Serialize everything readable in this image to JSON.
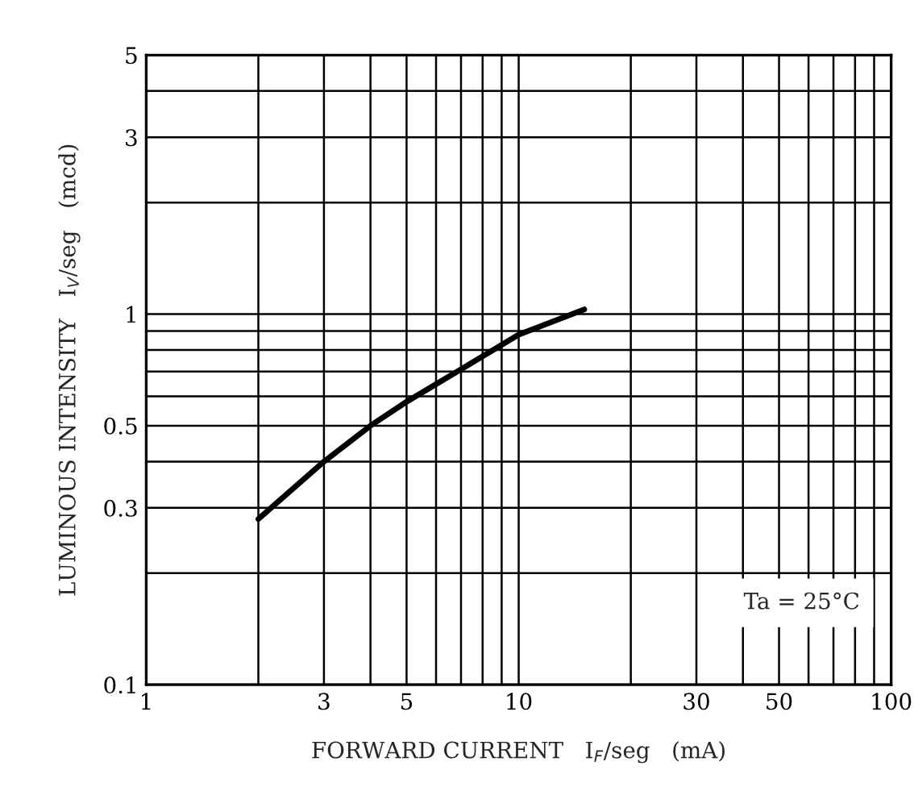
{
  "chart_data": {
    "type": "line",
    "xlabel": "FORWARD CURRENT   I$_{F}$/seg   (mA)",
    "ylabel": "LUMINOUS INTENSITY   I$_{V}$/seg   (mcd)",
    "x": [
      2,
      3,
      4,
      5,
      7,
      10,
      15
    ],
    "series": [
      {
        "color": "#000000",
        "values": [
          0.28,
          0.4,
          0.5,
          0.58,
          0.71,
          0.88,
          1.03
        ]
      }
    ],
    "log": "xy",
    "xlim": [
      1,
      100
    ],
    "ylim": [
      0.1,
      5
    ],
    "xticks": [
      1,
      3,
      5,
      10,
      30,
      50,
      100
    ],
    "yticks": [
      0.1,
      0.3,
      0.5,
      1,
      3,
      5
    ],
    "grid": true,
    "marker": "none",
    "line_style": "solid",
    "annotations": [
      "Ta = 25°C"
    ]
  }
}
